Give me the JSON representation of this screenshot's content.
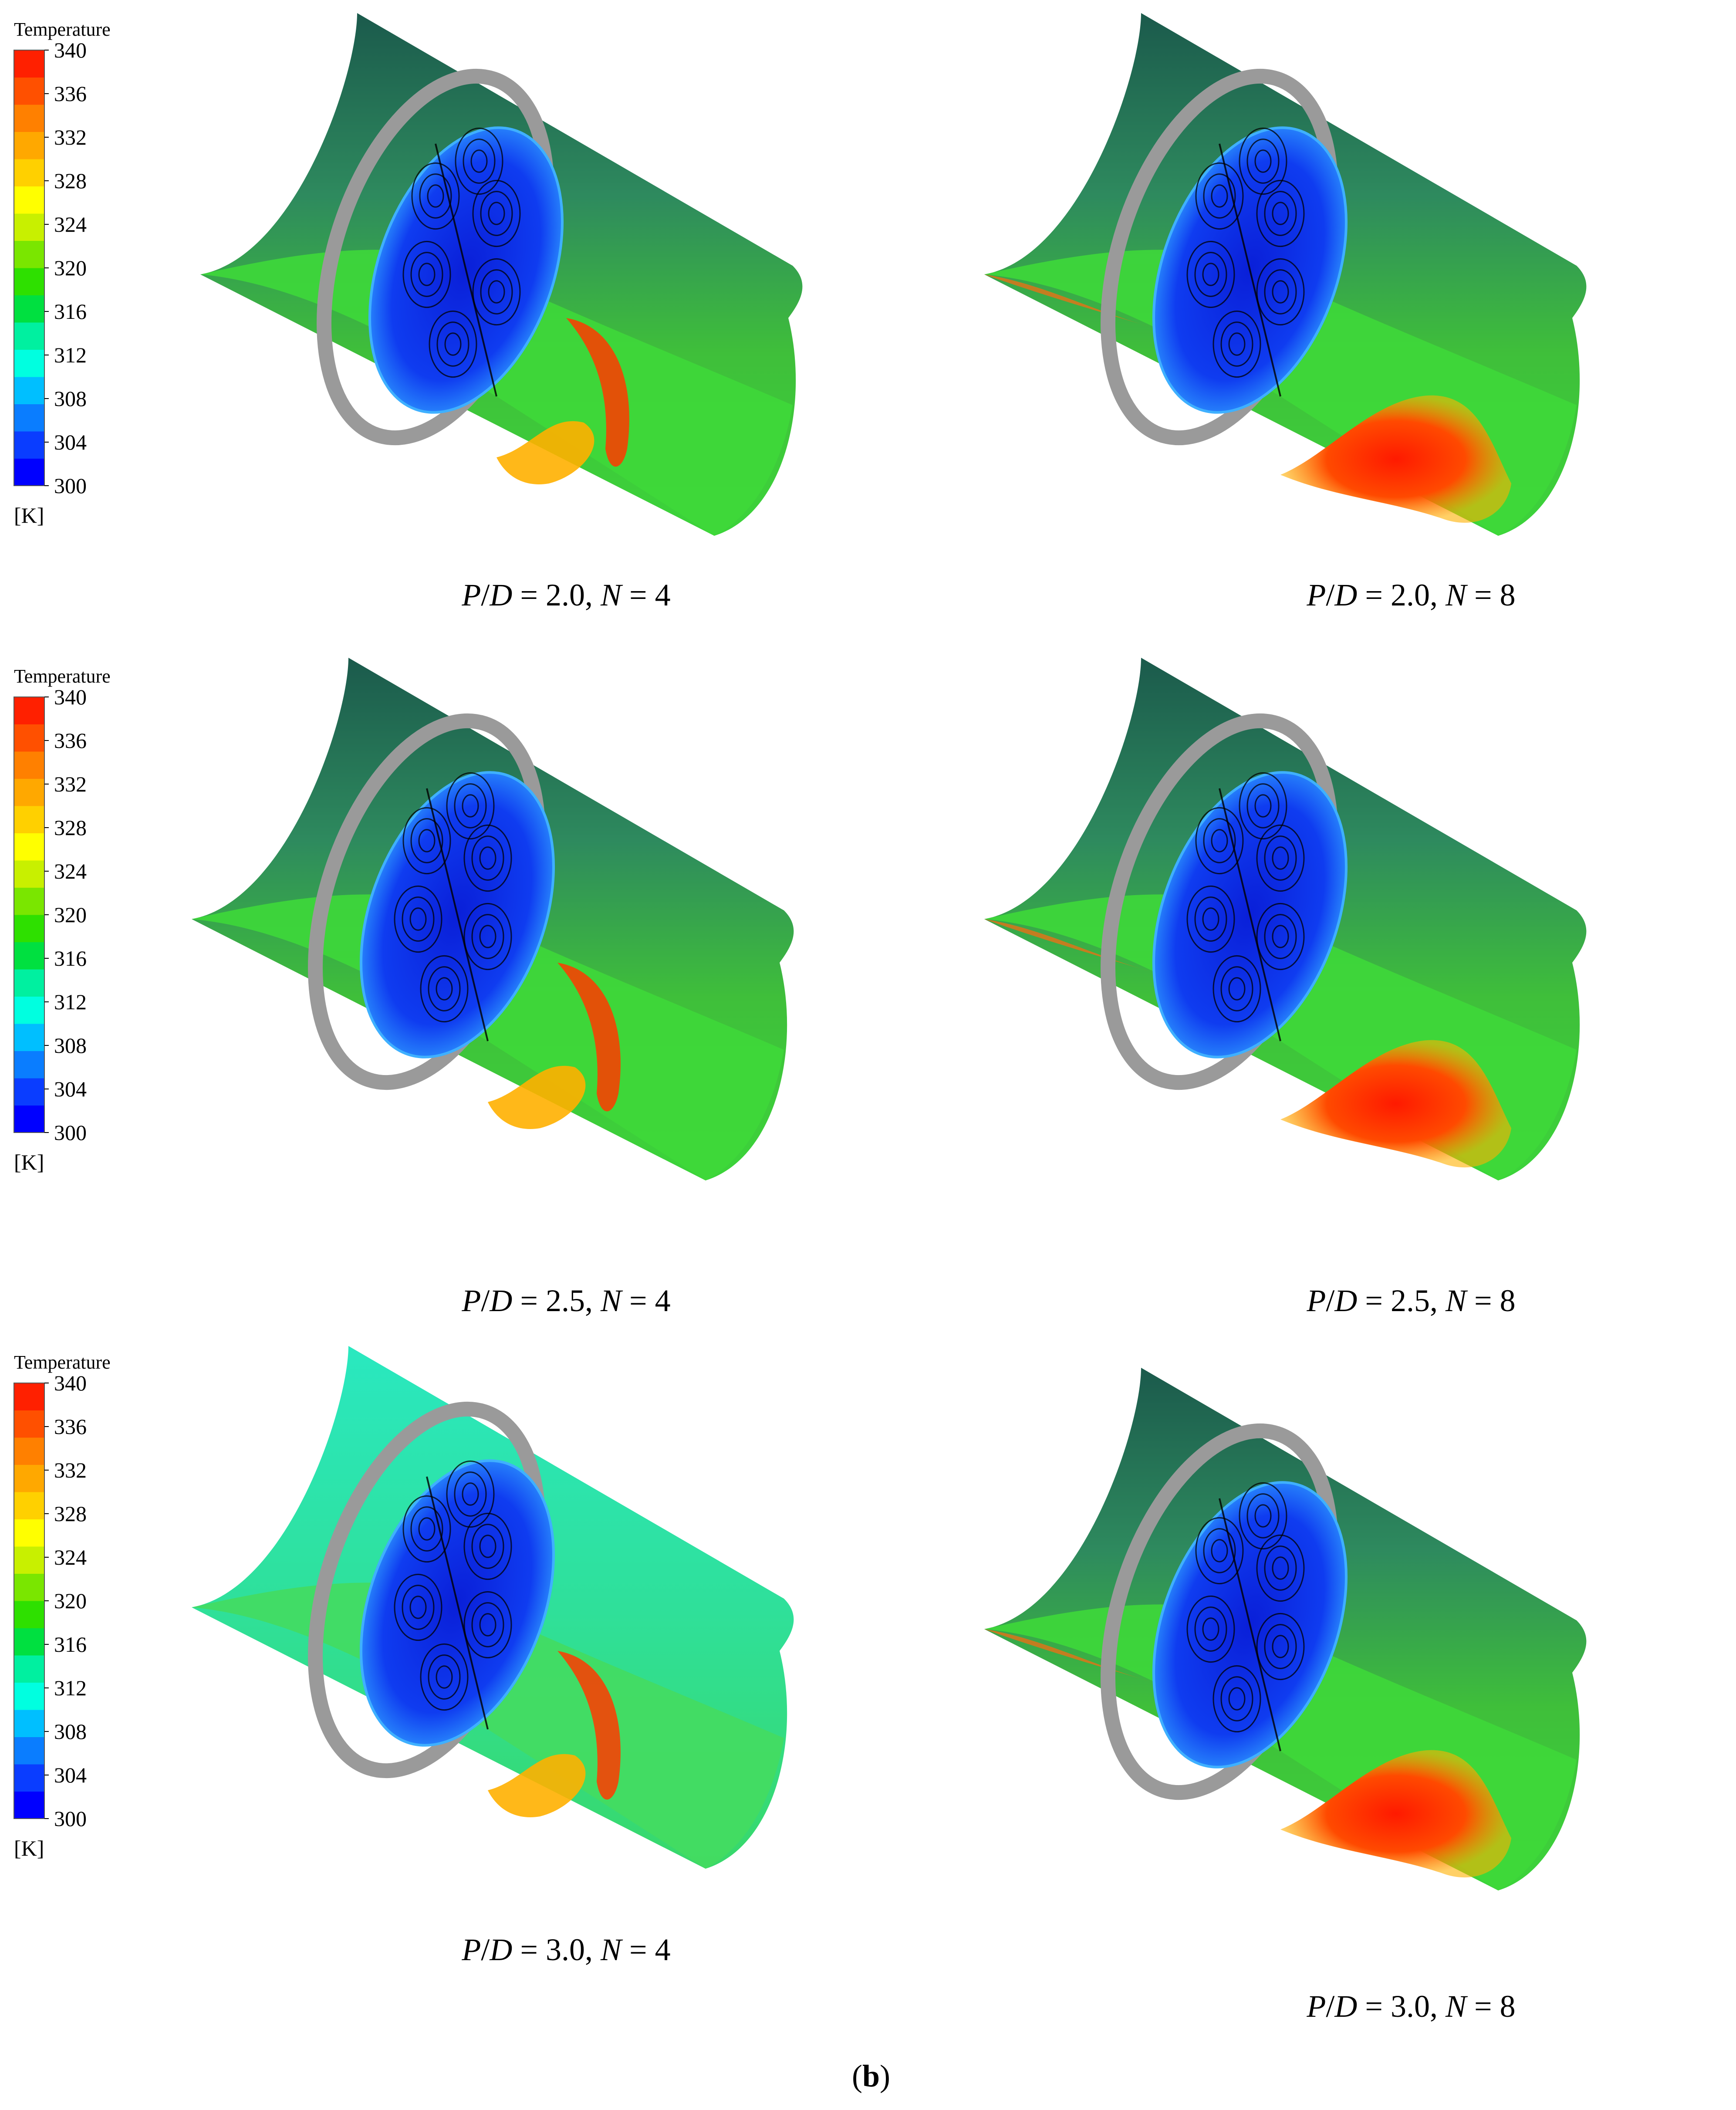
{
  "legend": {
    "title": "Temperature",
    "unit": "[K]",
    "ticks": [
      "340",
      "336",
      "332",
      "328",
      "324",
      "320",
      "316",
      "312",
      "308",
      "304",
      "300"
    ],
    "colors": [
      "#0000ff",
      "#0a3dff",
      "#0a7dff",
      "#00bfff",
      "#00ffe0",
      "#00f0a0",
      "#00e040",
      "#2ee000",
      "#7ae600",
      "#c8f000",
      "#ffff00",
      "#ffd000",
      "#ffa800",
      "#ff8000",
      "#ff5000",
      "#ff2000"
    ]
  },
  "panels": [
    {
      "caption": {
        "p": "P",
        "d": "D",
        "pd": "2.0",
        "n": "N",
        "nv": "4"
      }
    },
    {
      "caption": {
        "p": "P",
        "d": "D",
        "pd": "2.0",
        "n": "N",
        "nv": "8"
      }
    },
    {
      "caption": {
        "p": "P",
        "d": "D",
        "pd": "2.5",
        "n": "N",
        "nv": "4"
      }
    },
    {
      "caption": {
        "p": "P",
        "d": "D",
        "pd": "2.5",
        "n": "N",
        "nv": "8"
      }
    },
    {
      "caption": {
        "p": "P",
        "d": "D",
        "pd": "3.0",
        "n": "N",
        "nv": "4"
      }
    },
    {
      "caption": {
        "p": "P",
        "d": "D",
        "pd": "3.0",
        "n": "N",
        "nv": "8"
      }
    }
  ],
  "figure_label": {
    "open": "(",
    "letter": "b",
    "close": ")"
  }
}
